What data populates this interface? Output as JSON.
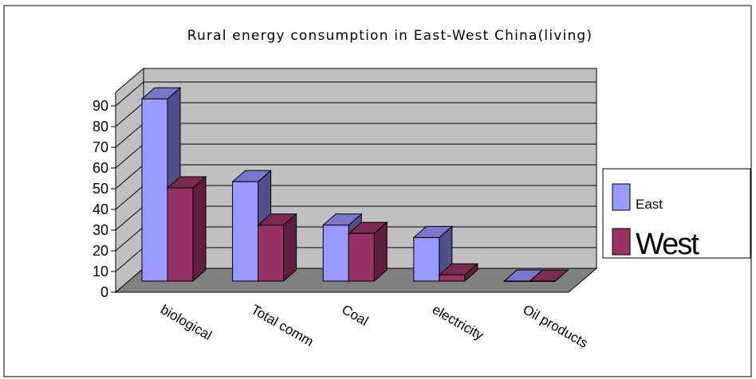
{
  "chart_data": {
    "type": "bar",
    "title": "Rural energy consumption in East-West China(living)",
    "categories": [
      "biological",
      "Total comm",
      "Coal",
      "electricity",
      "Oil products"
    ],
    "series": [
      {
        "name": "East",
        "values": [
          88,
          48,
          27,
          21,
          0
        ]
      },
      {
        "name": "West",
        "values": [
          45,
          27,
          23,
          3,
          0
        ]
      }
    ],
    "ylim": [
      0,
      90
    ],
    "yticks": [
      0,
      10,
      20,
      30,
      40,
      50,
      60,
      70,
      80,
      90
    ],
    "grid": true,
    "three_d": true,
    "legend_position": "right",
    "colors": {
      "east_front": "#9999ff",
      "east_side": "#50508a",
      "east_top": "#7777cc",
      "west_front": "#993366",
      "west_side": "#5e1f40",
      "west_top": "#7a2950",
      "wall": "#c0c0c0",
      "floor": "#808080"
    }
  }
}
